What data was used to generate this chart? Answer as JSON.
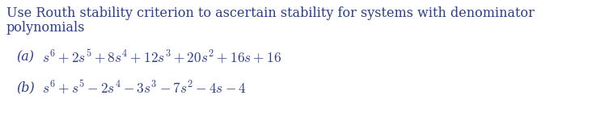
{
  "line1": "Use Routh stability criterion to ascertain stability for systems with denominator",
  "line2": "polynomials",
  "part_a_label": "(a)",
  "part_a_math": "$s^{6} + 2s^{5} + 8s^{4} + 12s^{3} + 20s^{2} + 16s + 16$",
  "part_b_label": "(b)",
  "part_b_math": "$s^{6} + s^{5} - 2s^{4} - 3s^{3} - 7s^{2} - 4s - 4$",
  "text_color": "#2b3d8c",
  "background_color": "#ffffff",
  "font_size_body": 11.5,
  "font_size_math": 12.5,
  "fig_width": 7.58,
  "fig_height": 1.49,
  "dpi": 100
}
